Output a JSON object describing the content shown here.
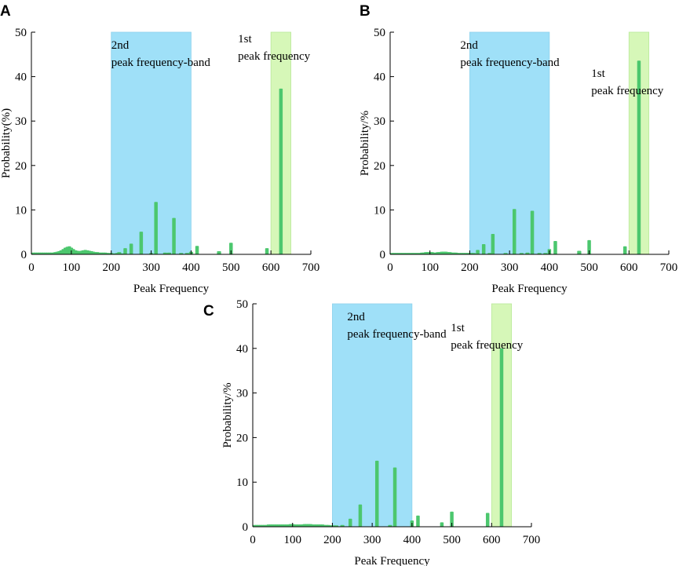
{
  "colors": {
    "bar": "#4cc76e",
    "band_2nd": "#9fe0f8",
    "band_1st": "#d6f7b8",
    "axis": "#000000"
  },
  "chart_data": [
    {
      "type": "bar",
      "panel": "A",
      "xlabel": "Peak Frequency",
      "ylabel": "Probability(%)",
      "xlim": [
        0,
        700
      ],
      "ylim": [
        0,
        50
      ],
      "xticks": [
        0,
        100,
        200,
        300,
        400,
        500,
        600,
        700
      ],
      "yticks": [
        0,
        10,
        20,
        30,
        40,
        50
      ],
      "bands": [
        {
          "x0": 200,
          "x1": 400,
          "label_lines": [
            "2nd",
            "peak frequency-band"
          ],
          "color": "#9fe0f8"
        },
        {
          "x0": 600,
          "x1": 650,
          "label_lines": [
            "1st",
            "peak frequency"
          ],
          "color": "#d6f7b8"
        }
      ],
      "bars": [
        [
          5,
          0.4
        ],
        [
          10,
          0.4
        ],
        [
          15,
          0.4
        ],
        [
          20,
          0.4
        ],
        [
          25,
          0.4
        ],
        [
          30,
          0.4
        ],
        [
          35,
          0.4
        ],
        [
          40,
          0.4
        ],
        [
          45,
          0.4
        ],
        [
          50,
          0.4
        ],
        [
          55,
          0.4
        ],
        [
          60,
          0.5
        ],
        [
          65,
          0.6
        ],
        [
          70,
          0.7
        ],
        [
          75,
          0.9
        ],
        [
          80,
          1.2
        ],
        [
          85,
          1.5
        ],
        [
          90,
          1.7
        ],
        [
          95,
          1.8
        ],
        [
          100,
          1.5
        ],
        [
          105,
          1.2
        ],
        [
          110,
          0.9
        ],
        [
          115,
          0.8
        ],
        [
          120,
          0.7
        ],
        [
          125,
          0.8
        ],
        [
          130,
          0.9
        ],
        [
          135,
          1.0
        ],
        [
          140,
          0.9
        ],
        [
          145,
          0.8
        ],
        [
          150,
          0.7
        ],
        [
          155,
          0.6
        ],
        [
          160,
          0.5
        ],
        [
          165,
          0.5
        ],
        [
          170,
          0.4
        ],
        [
          175,
          0.4
        ],
        [
          180,
          0.4
        ],
        [
          185,
          0.4
        ],
        [
          190,
          0.3
        ],
        [
          195,
          0.3
        ],
        [
          200,
          0.3
        ],
        [
          205,
          0.2
        ],
        [
          210,
          0.2
        ],
        [
          215,
          0.3
        ],
        [
          220,
          0.5
        ],
        [
          230,
          0.2
        ],
        [
          235,
          1.4
        ],
        [
          250,
          2.4
        ],
        [
          275,
          5.1
        ],
        [
          300,
          0.3
        ],
        [
          312,
          11.8
        ],
        [
          335,
          0.4
        ],
        [
          345,
          0.4
        ],
        [
          357,
          8.2
        ],
        [
          375,
          0.3
        ],
        [
          390,
          0.3
        ],
        [
          400,
          0.6
        ],
        [
          415,
          1.9
        ],
        [
          470,
          0.7
        ],
        [
          500,
          2.6
        ],
        [
          590,
          1.4
        ],
        [
          625,
          37.3
        ]
      ]
    },
    {
      "type": "bar",
      "panel": "B",
      "xlabel": "Peak Frequency",
      "ylabel": "Probability/%",
      "xlim": [
        0,
        700
      ],
      "ylim": [
        0,
        50
      ],
      "xticks": [
        0,
        100,
        200,
        300,
        400,
        500,
        600,
        700
      ],
      "yticks": [
        0,
        10,
        20,
        30,
        40,
        50
      ],
      "bands": [
        {
          "x0": 200,
          "x1": 400,
          "label_lines": [
            "2nd",
            "peak frequency-band"
          ],
          "color": "#9fe0f8"
        },
        {
          "x0": 600,
          "x1": 650,
          "label_lines": [
            "1st",
            "peak frequency"
          ],
          "color": "#d6f7b8"
        }
      ],
      "bars": [
        [
          5,
          0.3
        ],
        [
          10,
          0.3
        ],
        [
          15,
          0.3
        ],
        [
          20,
          0.3
        ],
        [
          25,
          0.3
        ],
        [
          30,
          0.3
        ],
        [
          35,
          0.3
        ],
        [
          40,
          0.3
        ],
        [
          45,
          0.3
        ],
        [
          50,
          0.3
        ],
        [
          55,
          0.3
        ],
        [
          60,
          0.3
        ],
        [
          65,
          0.3
        ],
        [
          70,
          0.3
        ],
        [
          75,
          0.3
        ],
        [
          80,
          0.4
        ],
        [
          85,
          0.4
        ],
        [
          90,
          0.5
        ],
        [
          95,
          0.5
        ],
        [
          100,
          0.5
        ],
        [
          105,
          0.5
        ],
        [
          110,
          0.4
        ],
        [
          115,
          0.4
        ],
        [
          120,
          0.5
        ],
        [
          125,
          0.5
        ],
        [
          130,
          0.6
        ],
        [
          135,
          0.6
        ],
        [
          140,
          0.6
        ],
        [
          145,
          0.5
        ],
        [
          150,
          0.5
        ],
        [
          155,
          0.4
        ],
        [
          160,
          0.4
        ],
        [
          165,
          0.4
        ],
        [
          170,
          0.3
        ],
        [
          175,
          0.3
        ],
        [
          180,
          0.3
        ],
        [
          185,
          0.3
        ],
        [
          190,
          0.3
        ],
        [
          195,
          0.3
        ],
        [
          200,
          0.3
        ],
        [
          205,
          0.3
        ],
        [
          210,
          0.3
        ],
        [
          220,
          1.0
        ],
        [
          235,
          2.3
        ],
        [
          250,
          0.3
        ],
        [
          258,
          4.6
        ],
        [
          290,
          0.3
        ],
        [
          312,
          10.2
        ],
        [
          330,
          0.3
        ],
        [
          345,
          0.4
        ],
        [
          357,
          9.8
        ],
        [
          375,
          0.3
        ],
        [
          390,
          0.3
        ],
        [
          400,
          1.2
        ],
        [
          415,
          3.0
        ],
        [
          475,
          0.8
        ],
        [
          500,
          3.2
        ],
        [
          590,
          1.8
        ],
        [
          625,
          43.6
        ]
      ]
    },
    {
      "type": "bar",
      "panel": "C",
      "xlabel": "Peak Frequency",
      "ylabel": "Probability/%",
      "xlim": [
        0,
        700
      ],
      "ylim": [
        0,
        50
      ],
      "xticks": [
        0,
        100,
        200,
        300,
        400,
        500,
        600,
        700
      ],
      "yticks": [
        0,
        10,
        20,
        30,
        40,
        50
      ],
      "bands": [
        {
          "x0": 200,
          "x1": 400,
          "label_lines": [
            "2nd",
            "peak frequency-band"
          ],
          "color": "#9fe0f8"
        },
        {
          "x0": 600,
          "x1": 650,
          "label_lines": [
            "1st",
            "peak frequency"
          ],
          "color": "#d6f7b8"
        }
      ],
      "bars": [
        [
          5,
          0.4
        ],
        [
          10,
          0.4
        ],
        [
          15,
          0.4
        ],
        [
          20,
          0.4
        ],
        [
          25,
          0.4
        ],
        [
          30,
          0.4
        ],
        [
          35,
          0.4
        ],
        [
          40,
          0.5
        ],
        [
          45,
          0.5
        ],
        [
          50,
          0.5
        ],
        [
          55,
          0.5
        ],
        [
          60,
          0.5
        ],
        [
          65,
          0.5
        ],
        [
          70,
          0.5
        ],
        [
          75,
          0.5
        ],
        [
          80,
          0.5
        ],
        [
          85,
          0.5
        ],
        [
          90,
          0.5
        ],
        [
          95,
          0.6
        ],
        [
          100,
          0.6
        ],
        [
          105,
          0.5
        ],
        [
          110,
          0.5
        ],
        [
          115,
          0.5
        ],
        [
          120,
          0.5
        ],
        [
          125,
          0.5
        ],
        [
          130,
          0.6
        ],
        [
          135,
          0.6
        ],
        [
          140,
          0.6
        ],
        [
          145,
          0.6
        ],
        [
          150,
          0.5
        ],
        [
          155,
          0.5
        ],
        [
          160,
          0.5
        ],
        [
          165,
          0.5
        ],
        [
          170,
          0.5
        ],
        [
          175,
          0.5
        ],
        [
          180,
          0.4
        ],
        [
          185,
          0.4
        ],
        [
          190,
          0.4
        ],
        [
          195,
          0.3
        ],
        [
          200,
          0.3
        ],
        [
          205,
          0.3
        ],
        [
          210,
          0.3
        ],
        [
          225,
          0.4
        ],
        [
          245,
          1.8
        ],
        [
          270,
          5.0
        ],
        [
          312,
          14.8
        ],
        [
          345,
          0.4
        ],
        [
          357,
          13.3
        ],
        [
          400,
          1.4
        ],
        [
          415,
          2.5
        ],
        [
          475,
          1.0
        ],
        [
          500,
          3.4
        ],
        [
          590,
          3.1
        ],
        [
          625,
          40.0
        ]
      ]
    }
  ]
}
